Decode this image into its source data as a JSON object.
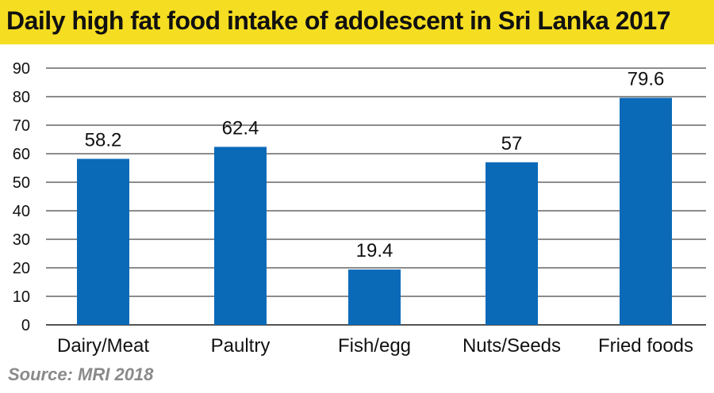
{
  "header": {
    "title": "Daily high fat food intake of adolescent in Sri Lanka 2017"
  },
  "footer": {
    "source": "Source: MRI 2018"
  },
  "colors": {
    "bar": "#0a6ab8",
    "title_background": "#f5dd22",
    "grid": "#1a1a1a"
  },
  "chart_data": {
    "type": "bar",
    "title": "Daily high fat food intake of adolescent in Sri Lanka 2017",
    "xlabel": "",
    "ylabel": "",
    "categories": [
      "Dairy/Meat",
      "Paultry",
      "Fish/egg",
      "Nuts/Seeds",
      "Fried foods"
    ],
    "values": [
      58.2,
      62.4,
      19.4,
      57,
      79.6
    ],
    "data_labels": [
      "58.2",
      "62.4",
      "19.4",
      "57",
      "79.6"
    ],
    "yticks": [
      0,
      10,
      20,
      30,
      40,
      50,
      60,
      70,
      80,
      90
    ],
    "ylim": [
      0,
      90
    ],
    "grid": true,
    "legend": "none"
  }
}
